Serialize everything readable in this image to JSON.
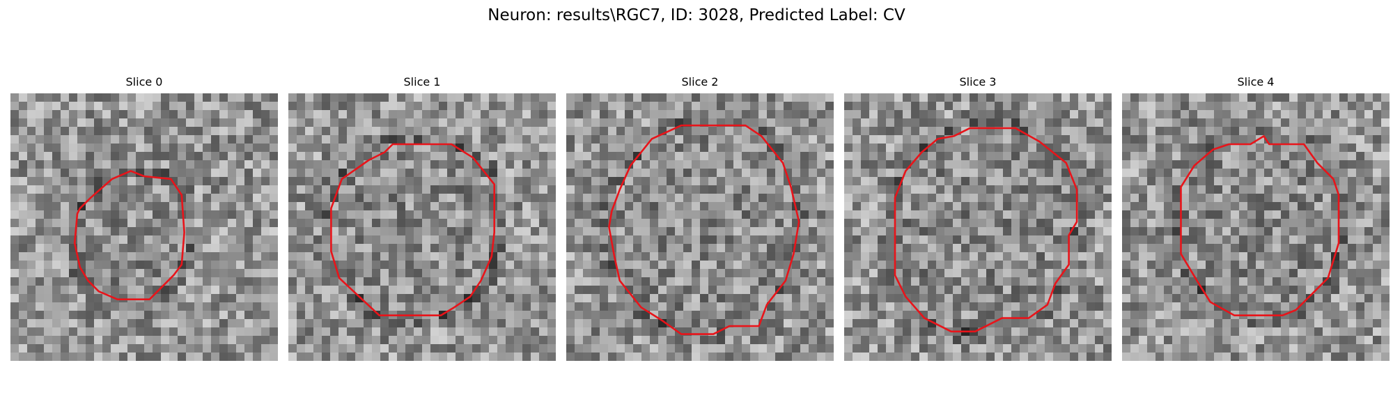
{
  "figure": {
    "title": "Neuron: results\\RGC7, ID: 3028, Predicted Label: CV"
  },
  "outline_color": "#e8141a",
  "panels": [
    {
      "title": "Slice 0",
      "outline": [
        [
          0.38,
          0.32
        ],
        [
          0.45,
          0.29
        ],
        [
          0.5,
          0.31
        ],
        [
          0.6,
          0.32
        ],
        [
          0.64,
          0.38
        ],
        [
          0.65,
          0.52
        ],
        [
          0.64,
          0.64
        ],
        [
          0.61,
          0.68
        ],
        [
          0.55,
          0.74
        ],
        [
          0.52,
          0.77
        ],
        [
          0.4,
          0.77
        ],
        [
          0.33,
          0.74
        ],
        [
          0.29,
          0.7
        ],
        [
          0.26,
          0.65
        ],
        [
          0.24,
          0.56
        ],
        [
          0.25,
          0.45
        ],
        [
          0.26,
          0.43
        ],
        [
          0.3,
          0.39
        ]
      ]
    },
    {
      "title": "Slice 1",
      "outline": [
        [
          0.3,
          0.25
        ],
        [
          0.36,
          0.22
        ],
        [
          0.39,
          0.19
        ],
        [
          0.61,
          0.19
        ],
        [
          0.69,
          0.24
        ],
        [
          0.77,
          0.34
        ],
        [
          0.77,
          0.52
        ],
        [
          0.76,
          0.61
        ],
        [
          0.72,
          0.7
        ],
        [
          0.68,
          0.76
        ],
        [
          0.62,
          0.8
        ],
        [
          0.57,
          0.83
        ],
        [
          0.34,
          0.83
        ],
        [
          0.19,
          0.69
        ],
        [
          0.16,
          0.59
        ],
        [
          0.16,
          0.43
        ],
        [
          0.2,
          0.32
        ]
      ]
    },
    {
      "title": "Slice 2",
      "outline": [
        [
          0.24,
          0.27
        ],
        [
          0.32,
          0.17
        ],
        [
          0.43,
          0.12
        ],
        [
          0.67,
          0.12
        ],
        [
          0.73,
          0.16
        ],
        [
          0.81,
          0.26
        ],
        [
          0.84,
          0.35
        ],
        [
          0.87,
          0.48
        ],
        [
          0.85,
          0.6
        ],
        [
          0.82,
          0.7
        ],
        [
          0.75,
          0.79
        ],
        [
          0.72,
          0.87
        ],
        [
          0.61,
          0.87
        ],
        [
          0.55,
          0.9
        ],
        [
          0.43,
          0.9
        ],
        [
          0.36,
          0.85
        ],
        [
          0.28,
          0.8
        ],
        [
          0.2,
          0.7
        ],
        [
          0.18,
          0.61
        ],
        [
          0.16,
          0.5
        ],
        [
          0.17,
          0.44
        ],
        [
          0.2,
          0.36
        ]
      ]
    },
    {
      "title": "Slice 3",
      "outline": [
        [
          0.23,
          0.29
        ],
        [
          0.29,
          0.22
        ],
        [
          0.35,
          0.17
        ],
        [
          0.41,
          0.16
        ],
        [
          0.47,
          0.13
        ],
        [
          0.64,
          0.13
        ],
        [
          0.73,
          0.18
        ],
        [
          0.83,
          0.26
        ],
        [
          0.87,
          0.36
        ],
        [
          0.87,
          0.48
        ],
        [
          0.84,
          0.53
        ],
        [
          0.84,
          0.64
        ],
        [
          0.79,
          0.71
        ],
        [
          0.76,
          0.79
        ],
        [
          0.69,
          0.84
        ],
        [
          0.59,
          0.84
        ],
        [
          0.49,
          0.89
        ],
        [
          0.4,
          0.89
        ],
        [
          0.3,
          0.84
        ],
        [
          0.23,
          0.76
        ],
        [
          0.19,
          0.68
        ],
        [
          0.19,
          0.39
        ]
      ]
    },
    {
      "title": "Slice 4",
      "outline": [
        [
          0.27,
          0.27
        ],
        [
          0.34,
          0.21
        ],
        [
          0.4,
          0.19
        ],
        [
          0.48,
          0.19
        ],
        [
          0.53,
          0.16
        ],
        [
          0.55,
          0.19
        ],
        [
          0.68,
          0.19
        ],
        [
          0.73,
          0.26
        ],
        [
          0.79,
          0.32
        ],
        [
          0.81,
          0.38
        ],
        [
          0.81,
          0.56
        ],
        [
          0.77,
          0.69
        ],
        [
          0.72,
          0.74
        ],
        [
          0.65,
          0.81
        ],
        [
          0.6,
          0.83
        ],
        [
          0.42,
          0.83
        ],
        [
          0.33,
          0.78
        ],
        [
          0.28,
          0.7
        ],
        [
          0.22,
          0.6
        ],
        [
          0.22,
          0.35
        ]
      ]
    }
  ]
}
